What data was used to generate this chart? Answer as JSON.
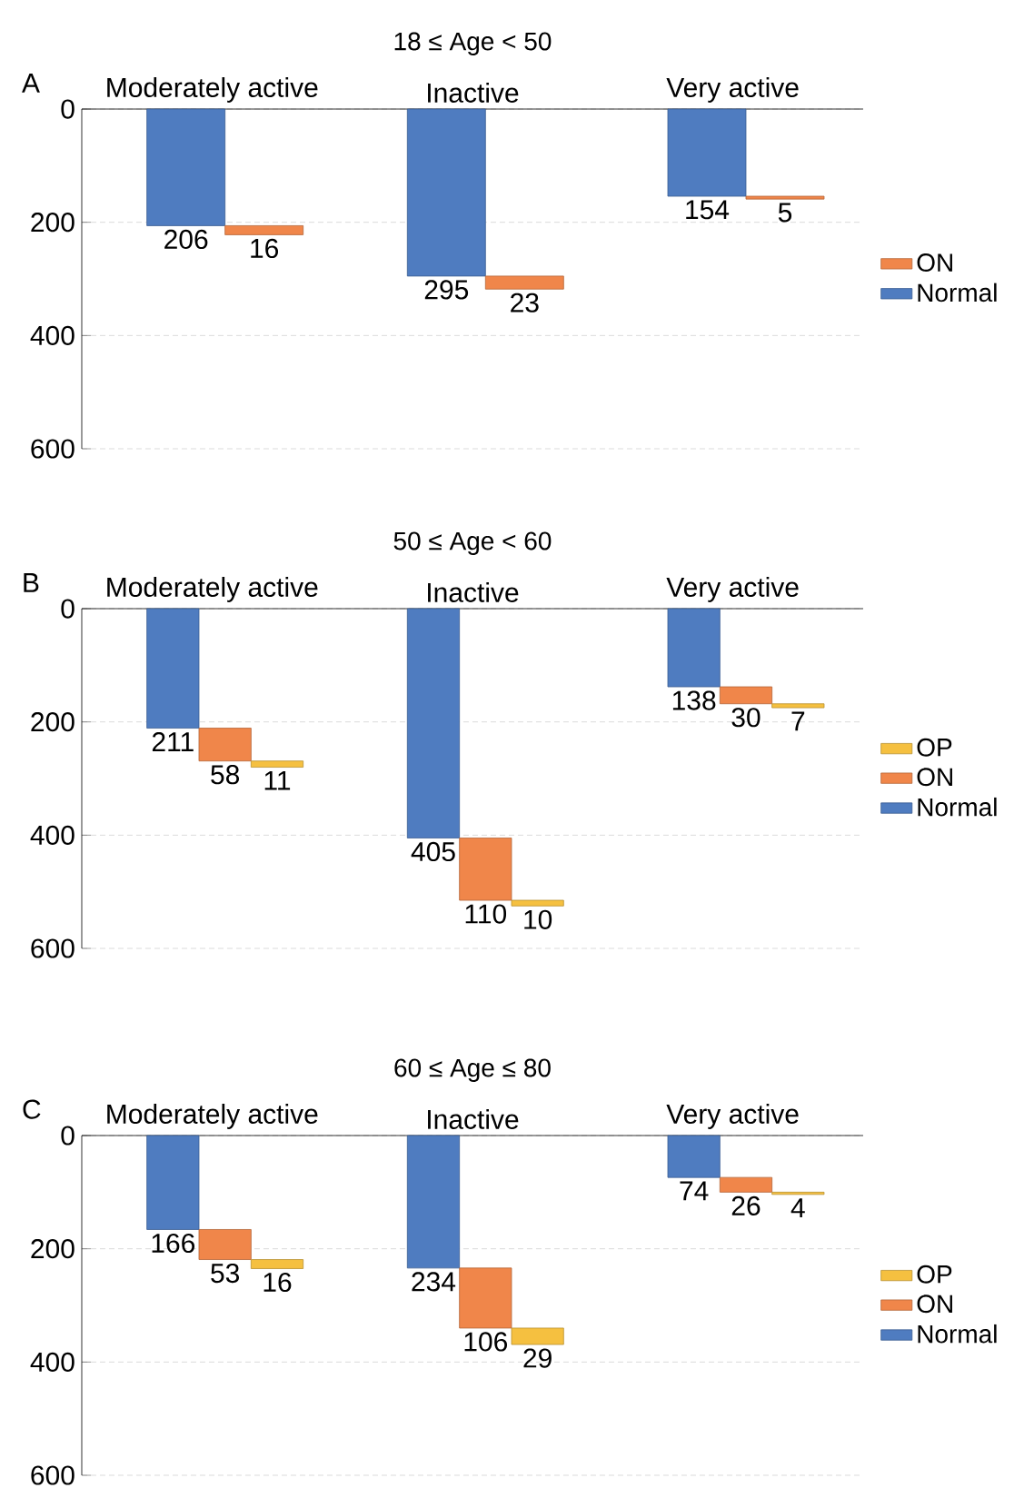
{
  "chart_data": [
    {
      "type": "bar",
      "title": "18 ≤ Age < 50",
      "annotations": [
        "A"
      ],
      "categories": [
        "Moderately active",
        "Inactive",
        "Very active"
      ],
      "series": [
        {
          "name": "Normal",
          "color": "#4f7cc0",
          "values": [
            206,
            295,
            154
          ],
          "base": [
            0,
            0,
            0
          ]
        },
        {
          "name": "ON",
          "color": "#f0864a",
          "values": [
            16,
            23,
            5
          ],
          "base": [
            206,
            295,
            154
          ]
        }
      ],
      "ylim": [
        600,
        0
      ],
      "yticks": [
        0,
        200,
        400,
        600
      ],
      "grid": "y",
      "legend": "right",
      "data_labels": true
    },
    {
      "type": "bar",
      "title": "50 ≤ Age < 60",
      "annotations": [
        "B"
      ],
      "categories": [
        "Moderately active",
        "Inactive",
        "Very active"
      ],
      "series": [
        {
          "name": "Normal",
          "color": "#4f7cc0",
          "values": [
            211,
            405,
            138
          ],
          "base": [
            0,
            0,
            0
          ]
        },
        {
          "name": "ON",
          "color": "#f0864a",
          "values": [
            58,
            110,
            30
          ],
          "base": [
            211,
            405,
            138
          ]
        },
        {
          "name": "OP",
          "color": "#f5c040",
          "values": [
            11,
            10,
            7
          ],
          "base": [
            269,
            515,
            168
          ]
        }
      ],
      "ylim": [
        600,
        0
      ],
      "yticks": [
        0,
        200,
        400,
        600
      ],
      "grid": "y",
      "legend": "right",
      "data_labels": true
    },
    {
      "type": "bar",
      "title": "60 ≤ Age ≤ 80",
      "annotations": [
        "C"
      ],
      "categories": [
        "Moderately active",
        "Inactive",
        "Very active"
      ],
      "series": [
        {
          "name": "Normal",
          "color": "#4f7cc0",
          "values": [
            166,
            234,
            74
          ],
          "base": [
            0,
            0,
            0
          ]
        },
        {
          "name": "ON",
          "color": "#f0864a",
          "values": [
            53,
            106,
            26
          ],
          "base": [
            166,
            234,
            74
          ]
        },
        {
          "name": "OP",
          "color": "#f5c040",
          "values": [
            16,
            29,
            4
          ],
          "base": [
            219,
            340,
            100
          ]
        }
      ],
      "ylim": [
        600,
        0
      ],
      "yticks": [
        0,
        200,
        400,
        600
      ],
      "grid": "y",
      "legend": "right",
      "data_labels": true
    }
  ]
}
